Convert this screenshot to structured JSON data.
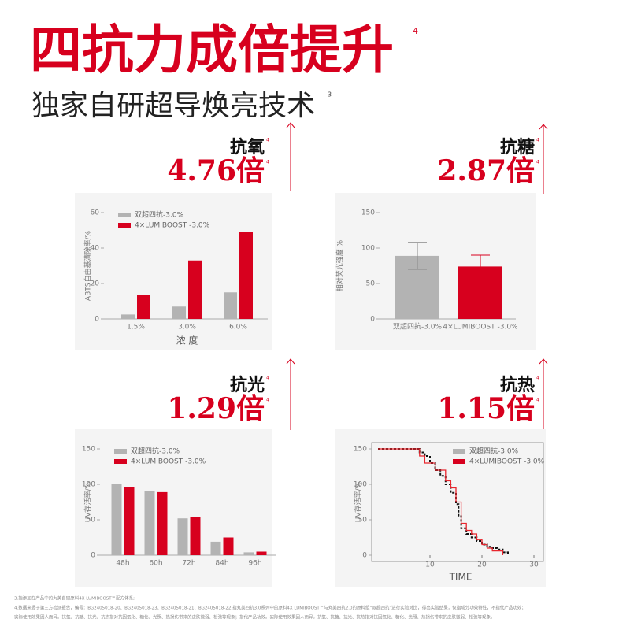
{
  "header": {
    "title": "四抗力成倍提升",
    "title_note": "4",
    "subtitle": "独家自研超导焕亮技术",
    "subtitle_note": "3"
  },
  "panels": [
    {
      "label": "抗氧",
      "label_note": "4",
      "value": "4.76倍",
      "value_note": "4"
    },
    {
      "label": "抗糖",
      "label_note": "4",
      "value": "2.87倍",
      "value_note": "4"
    },
    {
      "label": "抗光",
      "label_note": "4",
      "value": "1.29倍",
      "value_note": "4"
    },
    {
      "label": "抗热",
      "label_note": "4",
      "value": "1.15倍",
      "value_note": "4"
    }
  ],
  "chart_data": [
    {
      "type": "bar",
      "categories": [
        "1.5%",
        "3.0%",
        "6.0%"
      ],
      "xlabel": "浓 度",
      "ylabel": "ABTS自由基清除率/%",
      "series": [
        {
          "name": "双超四抗-3.0%",
          "color": "#b3b3b3",
          "values": [
            2.5,
            7,
            15
          ]
        },
        {
          "name": "4×LUMIBOOST -3.0%",
          "color": "#d7001e",
          "values": [
            13.5,
            33,
            49
          ]
        }
      ],
      "ylim": [
        0,
        60
      ],
      "yticks": [
        0,
        20,
        40,
        60
      ],
      "legend": "upper left"
    },
    {
      "type": "bar",
      "categories": [
        "双超四抗-3.0%",
        "4×LUMIBOOST -3.0%"
      ],
      "ylabel": "相对荧光强度 %",
      "values": [
        89,
        74
      ],
      "errors": [
        19,
        16
      ],
      "colors": [
        "#b3b3b3",
        "#d7001e"
      ],
      "ylim": [
        0,
        150
      ],
      "yticks": [
        0,
        50,
        100,
        150
      ]
    },
    {
      "type": "bar",
      "categories": [
        "48h",
        "60h",
        "72h",
        "84h",
        "96h"
      ],
      "ylabel": "UV存活率/%",
      "series": [
        {
          "name": "双超四抗-3.0%",
          "color": "#b3b3b3",
          "values": [
            100,
            91,
            52,
            19,
            4
          ]
        },
        {
          "name": "4×LUMIBOOST -3.0%",
          "color": "#d7001e",
          "values": [
            96,
            89,
            54,
            25,
            5
          ]
        }
      ],
      "ylim": [
        0,
        150
      ],
      "yticks": [
        0,
        50,
        100,
        150
      ],
      "legend": "upper left"
    },
    {
      "type": "line",
      "step": true,
      "xlabel": "TIME",
      "ylabel": "UV存活率/%",
      "series": [
        {
          "name": "双超四抗-3.0%",
          "color": "#b3b3b3",
          "line_color": "#111111",
          "dashed": true,
          "x": [
            0,
            7,
            8,
            9,
            10,
            11,
            12,
            13,
            14,
            15,
            15.5,
            16,
            17,
            18,
            19,
            20,
            21,
            22,
            23,
            24,
            25
          ],
          "values": [
            150,
            150,
            145,
            140,
            130,
            120,
            112,
            100,
            88,
            72,
            55,
            38,
            30,
            25,
            20,
            15,
            12,
            10,
            8,
            4,
            0
          ]
        },
        {
          "name": "4×LUMIBOOST -3.0%",
          "color": "#d7001e",
          "line_color": "#e8262e",
          "dashed": false,
          "x": [
            0,
            4,
            8,
            9,
            11,
            13,
            14,
            15,
            16,
            17,
            18,
            19,
            20,
            21,
            22,
            24
          ],
          "values": [
            150,
            150,
            140,
            130,
            120,
            105,
            95,
            75,
            45,
            35,
            30,
            22,
            15,
            10,
            6,
            0
          ]
        }
      ],
      "xlim": [
        0,
        30
      ],
      "xticks": [
        10,
        20,
        30
      ],
      "ylim": [
        0,
        150
      ],
      "yticks": [
        0,
        50,
        100,
        150
      ],
      "legend": "upper right"
    }
  ],
  "footnotes": [
    "3.指添加在产品中的丸美自研原料4X LUMIBOOST™配方体系;",
    "4.数据来源于第三方检测报告，编号：BG2405018-20、BG2405018-23、BG2405018-21、BG2405018-22,指丸美四抗3.0系列中的原料4X LUMIBOOST™与丸美四抗2.0的原料组“双超四抗”进行实验对比，得出实验结果，仅指成分功效特性，不指代产品功效；",
    "实际使用效果因人而异。抗氧、抗糖、抗光、抗热指对抗因氧化、糖化、光照、热损伤带来的皮肤微弱、松弛等现象；指代产品功效。实际使用效果因人而异。抗氧、抗糖、抗光、抗热指对抗因氧化、糖化、光照、热损伤带来的皮肤微弱、松弛等现象。"
  ]
}
